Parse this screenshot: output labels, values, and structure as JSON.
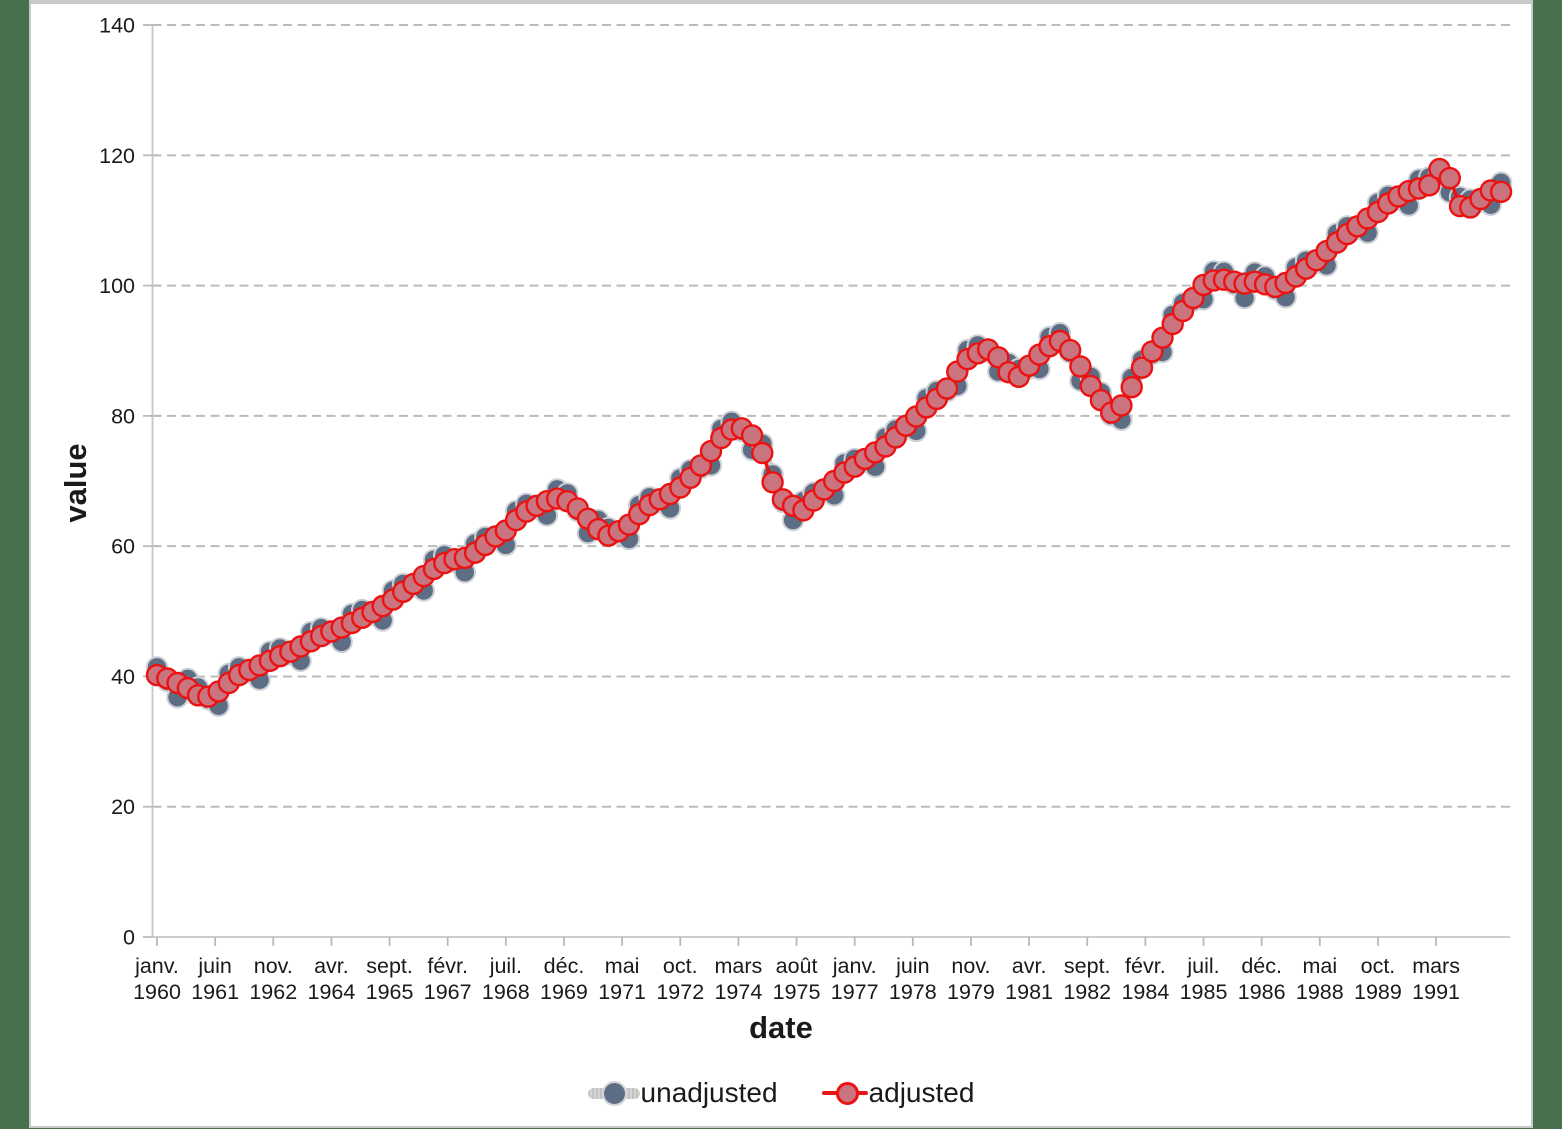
{
  "page": {
    "background_color": "#47704e",
    "panel_background": "#ffffff",
    "panel_border_color": "#c9c9c9",
    "text_color": "#1a1a1a",
    "grid_color": "#bbbbbb",
    "axis_color": "#c6c6c6"
  },
  "chart_data": {
    "type": "line",
    "title": "",
    "xlabel": "date",
    "ylabel": "value",
    "ylim": [
      0,
      140
    ],
    "y_ticks": [
      0,
      20,
      40,
      60,
      80,
      100,
      120,
      140
    ],
    "grid": "horizontal-dashed",
    "legend_position": "bottom-center",
    "x_start": "janv. 1960",
    "x_end": "1992",
    "frequency": "quarterly",
    "x_tick_labels": [
      {
        "month": "janv.",
        "year": "1960"
      },
      {
        "month": "juin",
        "year": "1961"
      },
      {
        "month": "nov.",
        "year": "1962"
      },
      {
        "month": "avr.",
        "year": "1964"
      },
      {
        "month": "sept.",
        "year": "1965"
      },
      {
        "month": "févr.",
        "year": "1967"
      },
      {
        "month": "juil.",
        "year": "1968"
      },
      {
        "month": "déc.",
        "year": "1969"
      },
      {
        "month": "mai",
        "year": "1971"
      },
      {
        "month": "oct.",
        "year": "1972"
      },
      {
        "month": "mars",
        "year": "1974"
      },
      {
        "month": "août",
        "year": "1975"
      },
      {
        "month": "janv.",
        "year": "1977"
      },
      {
        "month": "juin",
        "year": "1978"
      },
      {
        "month": "nov.",
        "year": "1979"
      },
      {
        "month": "avr.",
        "year": "1981"
      },
      {
        "month": "sept.",
        "year": "1982"
      },
      {
        "month": "févr.",
        "year": "1984"
      },
      {
        "month": "juil.",
        "year": "1985"
      },
      {
        "month": "déc.",
        "year": "1986"
      },
      {
        "month": "mai",
        "year": "1988"
      },
      {
        "month": "oct.",
        "year": "1989"
      },
      {
        "month": "mars",
        "year": "1991"
      }
    ],
    "series": [
      {
        "name": "unadjusted",
        "marker_fill": "#5c6d84",
        "marker_stroke": "#ccd1d6",
        "line_color": "#c9c9c9",
        "values": [
          41.4,
          39.3,
          36.8,
          39.6,
          38.3,
          36.5,
          35.5,
          40.4,
          41.4,
          40.6,
          39.5,
          43.8,
          44.3,
          43.4,
          42.4,
          46.8,
          47.4,
          46.5,
          45.3,
          49.6,
          50.2,
          49.5,
          48.6,
          53.2,
          54.2,
          53.8,
          53.2,
          57.9,
          58.6,
          57.6,
          56.0,
          60.4,
          61.4,
          61.1,
          60.2,
          65.4,
          66.5,
          65.8,
          64.7,
          68.7,
          68.1,
          65.4,
          62.0,
          64.0,
          62.8,
          61.9,
          61.1,
          66.3,
          67.5,
          66.8,
          65.8,
          70.4,
          71.7,
          72.0,
          72.4,
          78.0,
          79.1,
          77.7,
          74.8,
          75.7,
          71.0,
          66.8,
          64.0,
          66.9,
          68.2,
          68.3,
          67.8,
          72.7,
          73.4,
          73.0,
          72.2,
          76.7,
          77.9,
          78.1,
          77.7,
          82.7,
          83.8,
          83.8,
          84.6,
          90.1,
          90.8,
          89.8,
          86.8,
          88.1,
          87.2,
          87.3,
          87.2,
          92.1,
          92.7,
          89.7,
          85.4,
          86.0,
          83.6,
          80.1,
          79.4,
          85.8,
          88.6,
          89.5,
          89.8,
          95.5,
          97.3,
          97.7,
          97.9,
          102.2,
          102.1,
          100.2,
          98.1,
          102.0,
          101.4,
          99.4,
          98.2,
          102.8,
          103.8,
          103.5,
          103.1,
          108.0,
          109.1,
          108.7,
          108.1,
          112.7,
          113.8,
          113.3,
          112.3,
          116.3,
          116.6,
          117.5,
          114.3,
          113.6,
          113.2,
          112.9,
          112.4,
          115.8
        ]
      },
      {
        "name": "adjusted",
        "marker_fill": "#c9747e",
        "marker_stroke": "#ed1212",
        "line_color": "#ed1212",
        "values": [
          40.2,
          39.7,
          39.0,
          38.2,
          37.1,
          36.9,
          37.7,
          39.0,
          40.2,
          41.0,
          41.7,
          42.4,
          43.1,
          43.8,
          44.6,
          45.4,
          46.2,
          46.9,
          47.5,
          48.2,
          49.0,
          49.9,
          50.8,
          51.8,
          53.0,
          54.2,
          55.4,
          56.5,
          57.4,
          58.0,
          58.2,
          59.0,
          60.2,
          61.5,
          62.4,
          64.0,
          65.3,
          66.2,
          66.9,
          67.3,
          66.9,
          65.8,
          64.2,
          62.6,
          61.6,
          62.3,
          63.3,
          64.9,
          66.3,
          67.2,
          68.0,
          69.0,
          70.5,
          72.4,
          74.6,
          76.6,
          77.9,
          78.1,
          77.0,
          74.3,
          69.8,
          67.2,
          66.2,
          65.5,
          67.0,
          68.7,
          70.0,
          71.3,
          72.2,
          73.4,
          74.4,
          75.3,
          76.7,
          78.5,
          79.9,
          81.3,
          82.6,
          84.2,
          86.8,
          88.7,
          89.6,
          90.2,
          89.0,
          86.7,
          86.0,
          87.7,
          89.4,
          90.7,
          91.5,
          90.1,
          87.6,
          84.6,
          82.4,
          80.5,
          81.6,
          84.4,
          87.4,
          89.9,
          92.0,
          94.1,
          96.1,
          98.1,
          100.1,
          100.8,
          100.9,
          100.6,
          100.3,
          100.6,
          100.2,
          99.8,
          100.4,
          101.4,
          102.6,
          103.9,
          105.3,
          106.6,
          107.9,
          109.1,
          110.3,
          111.3,
          112.6,
          113.7,
          114.5,
          114.9,
          115.4,
          117.9,
          116.5,
          112.2,
          112.0,
          113.3,
          114.6,
          114.4
        ]
      }
    ]
  }
}
